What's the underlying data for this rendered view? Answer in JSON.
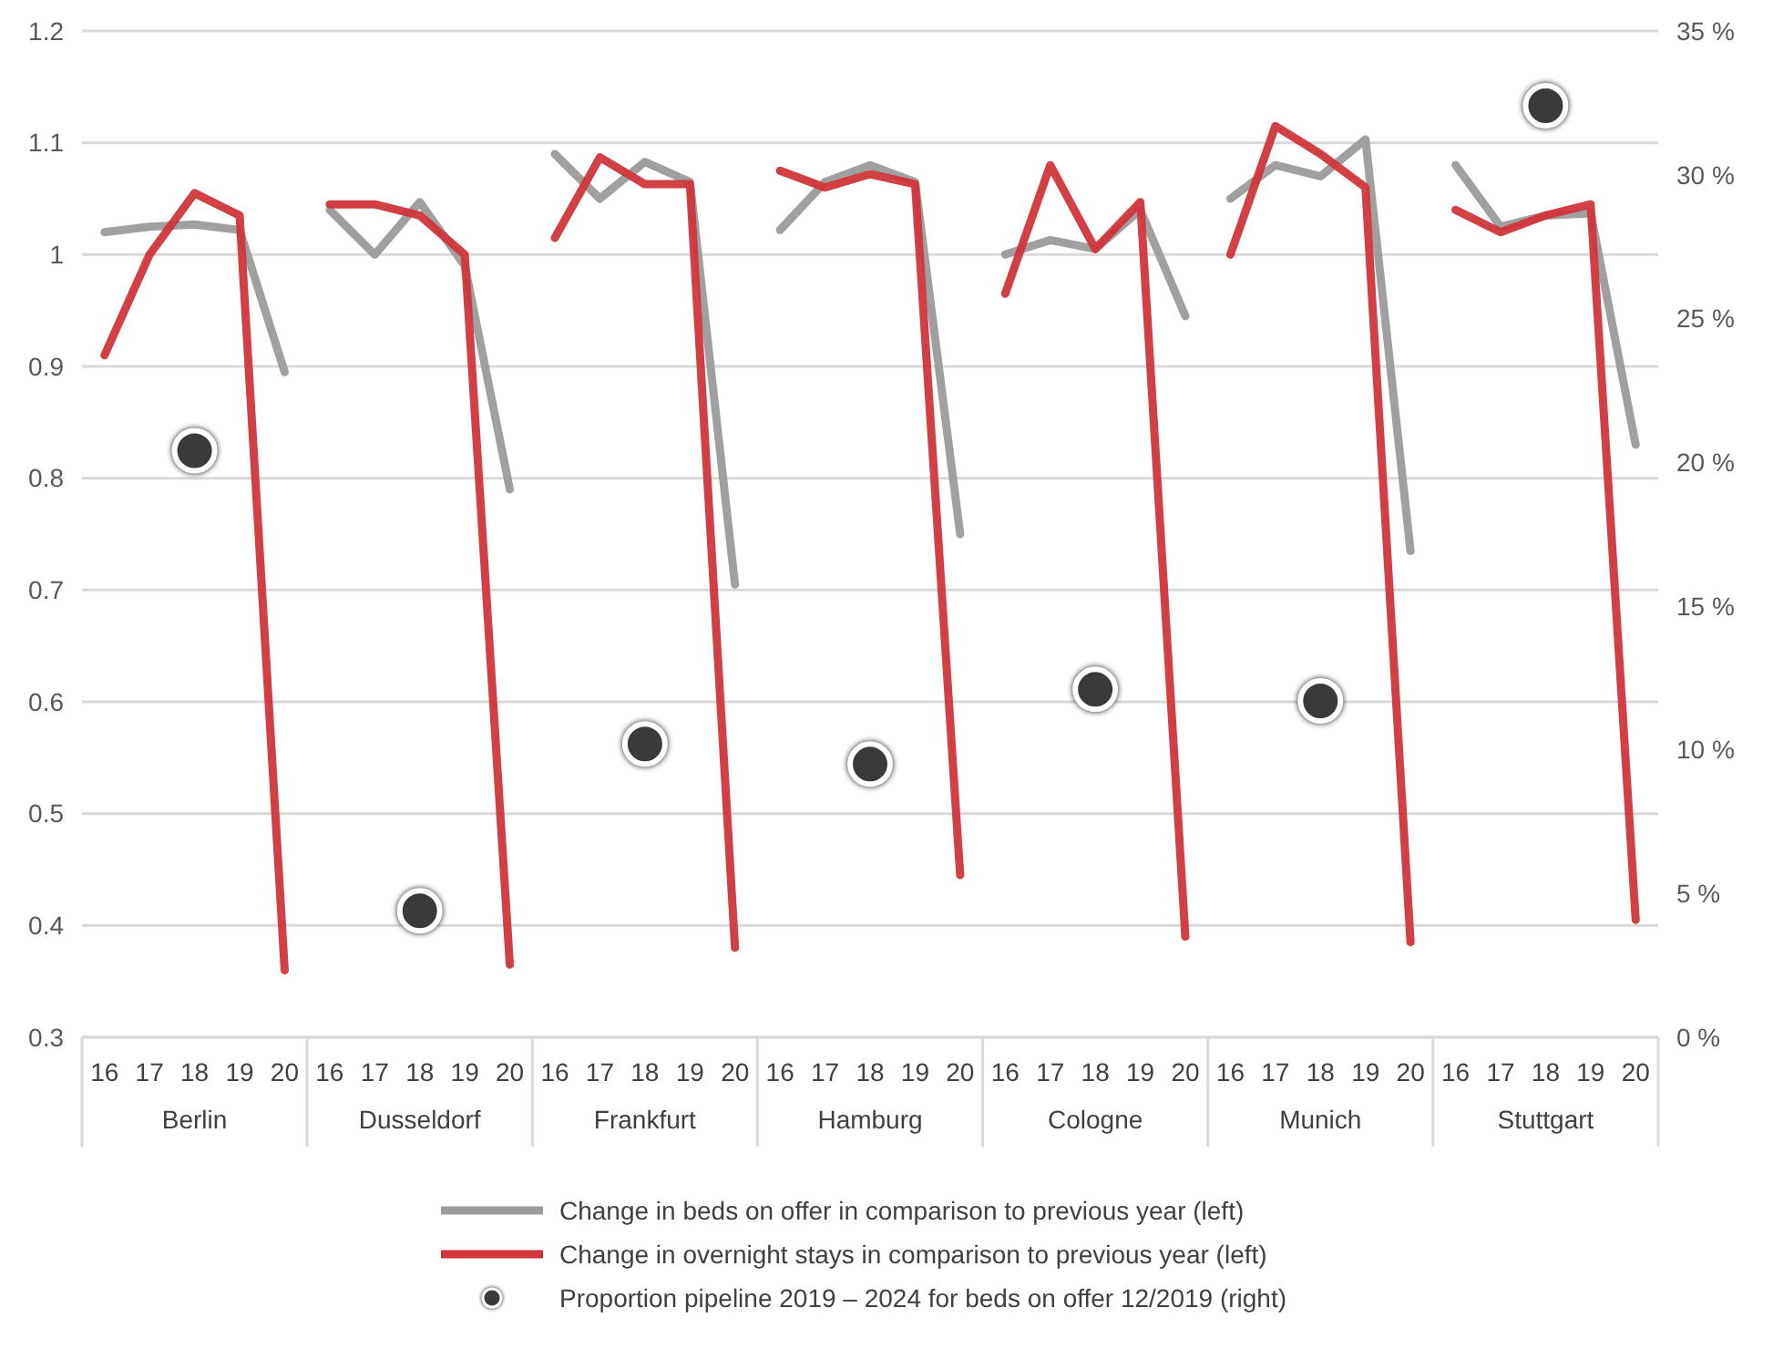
{
  "chart_data": {
    "type": "line",
    "categories": [
      "16",
      "17",
      "18",
      "19",
      "20",
      "16",
      "17",
      "18",
      "19",
      "20",
      "16",
      "17",
      "18",
      "19",
      "20",
      "16",
      "17",
      "18",
      "19",
      "20",
      "16",
      "17",
      "18",
      "19",
      "20",
      "16",
      "17",
      "18",
      "19",
      "20",
      "16",
      "17",
      "18",
      "19",
      "20"
    ],
    "annotations": [
      "Berlin",
      "Dusseldorf",
      "Frankfurt",
      "Hamburg",
      "Cologne",
      "Munich",
      "Stuttgart"
    ],
    "series": [
      {
        "name": "Change in beds on offer in comparison to previous year (left)",
        "color": "#9b9b9b",
        "values": [
          1.02,
          1.025,
          1.027,
          1.022,
          0.895,
          1.04,
          1.0,
          1.047,
          0.99,
          0.79,
          1.09,
          1.05,
          1.083,
          1.065,
          0.705,
          1.022,
          1.065,
          1.08,
          1.065,
          0.75,
          1.0,
          1.013,
          1.005,
          1.04,
          0.945,
          1.05,
          1.08,
          1.07,
          1.103,
          0.735,
          1.08,
          1.025,
          1.035,
          1.037,
          0.83
        ]
      },
      {
        "name": "Change in overnight stays in comparison to previous year (left)",
        "color": "#d0353a",
        "values": [
          0.91,
          1.0,
          1.055,
          1.035,
          0.36,
          1.045,
          1.045,
          1.035,
          1.0,
          0.365,
          1.015,
          1.087,
          1.063,
          1.063,
          0.38,
          1.075,
          1.06,
          1.072,
          1.063,
          0.445,
          0.965,
          1.08,
          1.005,
          1.047,
          0.39,
          1.0,
          1.115,
          1.09,
          1.06,
          0.385,
          1.04,
          1.02,
          1.035,
          1.045,
          0.405
        ]
      },
      {
        "name": "Proportion pipeline 2019 – 2024 for beds on offer 12/2019 (right)",
        "type": "scatter",
        "axis": "y2",
        "marker": "circle",
        "color": "#3a3a3a",
        "values": [
          null,
          null,
          20.4,
          null,
          null,
          null,
          null,
          4.4,
          null,
          null,
          null,
          null,
          10.2,
          null,
          null,
          null,
          null,
          9.5,
          null,
          null,
          null,
          null,
          12.1,
          null,
          null,
          null,
          null,
          11.7,
          null,
          null,
          null,
          null,
          32.4,
          null,
          null
        ]
      }
    ],
    "ylim": [
      0.3,
      1.2
    ],
    "yticks": [
      0.3,
      0.4,
      0.5,
      0.6,
      0.7,
      0.8,
      0.9,
      1,
      1.1,
      1.2
    ],
    "y2lim": [
      0,
      35
    ],
    "y2ticks": [
      {
        "value": 0,
        "label": "0 %"
      },
      {
        "value": 5,
        "label": "5 %"
      },
      {
        "value": 10,
        "label": "10 %"
      },
      {
        "value": 15,
        "label": "15 %"
      },
      {
        "value": 20,
        "label": "20 %"
      },
      {
        "value": 25,
        "label": "25 %"
      },
      {
        "value": 30,
        "label": "30 %"
      },
      {
        "value": 35,
        "label": "35 %"
      }
    ],
    "grid": "y",
    "legend": "bottom"
  }
}
